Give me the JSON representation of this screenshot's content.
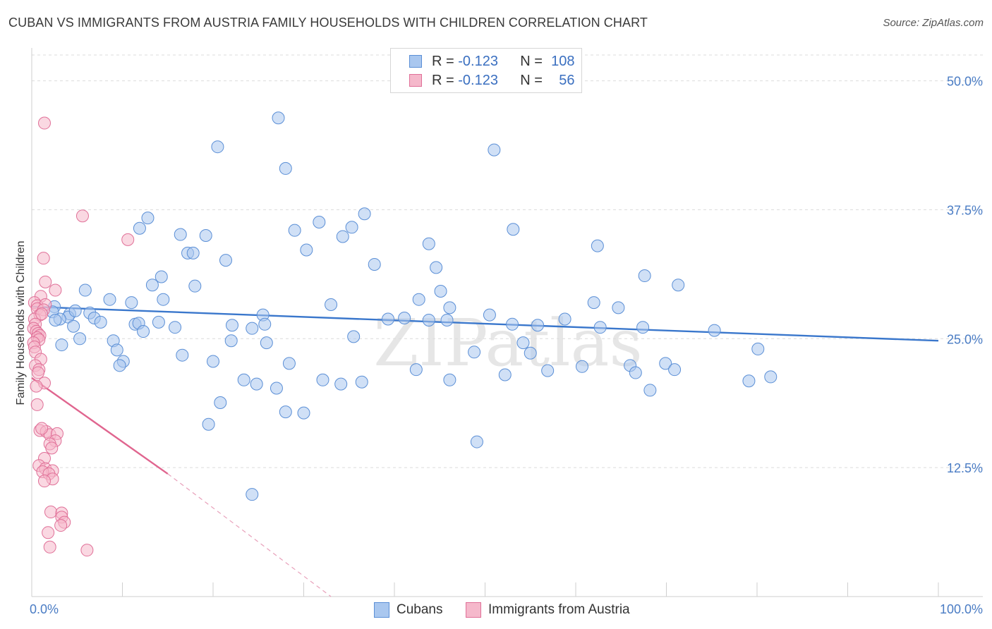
{
  "header": {
    "title": "CUBAN VS IMMIGRANTS FROM AUSTRIA FAMILY HOUSEHOLDS WITH CHILDREN CORRELATION CHART",
    "source": "Source: ZipAtlas.com"
  },
  "legend": {
    "rows": [
      {
        "r_label": "R =",
        "r_value": "-0.123",
        "n_label": "N =",
        "n_value": "108"
      },
      {
        "r_label": "R =",
        "r_value": "-0.123",
        "n_label": "N =",
        "n_value": "56"
      }
    ]
  },
  "colors": {
    "cubans_fill": "#a9c7ef",
    "cubans_stroke": "#5b8fd6",
    "cubans_line": "#3a77cc",
    "austria_fill": "#f5b8cb",
    "austria_stroke": "#e07098",
    "austria_line": "#e0658f",
    "grid": "#dcdcdc",
    "tick_text": "#4a7cc4"
  },
  "chart_data": {
    "type": "scatter",
    "title": "CUBAN VS IMMIGRANTS FROM AUSTRIA FAMILY HOUSEHOLDS WITH CHILDREN CORRELATION CHART",
    "xlabel": "",
    "ylabel": "Family Households with Children",
    "xlim": [
      0,
      100
    ],
    "ylim": [
      0,
      52.5
    ],
    "x_tick_labels": [
      "0.0%",
      "100.0%"
    ],
    "y_ticks": [
      12.5,
      25.0,
      37.5,
      50.0
    ],
    "y_tick_labels": [
      "12.5%",
      "25.0%",
      "37.5%",
      "50.0%"
    ],
    "grid": true,
    "legend_position": "bottom",
    "watermark": "ZIPatlas",
    "series": [
      {
        "name": "Cubans",
        "r": -0.123,
        "n": 108,
        "trend": {
          "x": [
            0,
            100
          ],
          "y": [
            28.1,
            24.8
          ]
        },
        "points": [
          [
            27.2,
            46.4
          ],
          [
            20.5,
            43.6
          ],
          [
            51.0,
            43.3
          ],
          [
            28.0,
            41.5
          ],
          [
            36.7,
            37.1
          ],
          [
            12.8,
            36.7
          ],
          [
            31.7,
            36.3
          ],
          [
            11.9,
            35.7
          ],
          [
            35.3,
            35.8
          ],
          [
            29.0,
            35.5
          ],
          [
            53.1,
            35.6
          ],
          [
            16.4,
            35.1
          ],
          [
            19.2,
            35.0
          ],
          [
            34.3,
            34.9
          ],
          [
            43.8,
            34.2
          ],
          [
            62.4,
            34.0
          ],
          [
            30.3,
            33.6
          ],
          [
            17.2,
            33.3
          ],
          [
            17.8,
            33.3
          ],
          [
            21.4,
            32.6
          ],
          [
            37.8,
            32.2
          ],
          [
            44.6,
            31.9
          ],
          [
            67.6,
            31.1
          ],
          [
            14.3,
            31.0
          ],
          [
            13.3,
            30.2
          ],
          [
            18.0,
            30.1
          ],
          [
            71.3,
            30.2
          ],
          [
            45.1,
            29.6
          ],
          [
            5.9,
            29.7
          ],
          [
            8.6,
            28.8
          ],
          [
            14.5,
            28.8
          ],
          [
            42.7,
            28.8
          ],
          [
            62.0,
            28.5
          ],
          [
            33.0,
            28.3
          ],
          [
            64.7,
            28.0
          ],
          [
            46.1,
            28.0
          ],
          [
            2.5,
            28.1
          ],
          [
            2.3,
            27.6
          ],
          [
            4.2,
            27.4
          ],
          [
            6.4,
            27.5
          ],
          [
            25.5,
            27.3
          ],
          [
            6.9,
            27.0
          ],
          [
            4.0,
            27.1
          ],
          [
            3.1,
            26.9
          ],
          [
            7.6,
            26.6
          ],
          [
            2.6,
            26.8
          ],
          [
            39.3,
            26.9
          ],
          [
            45.8,
            26.8
          ],
          [
            43.8,
            26.8
          ],
          [
            58.8,
            26.9
          ],
          [
            53.0,
            26.4
          ],
          [
            55.8,
            26.3
          ],
          [
            11.4,
            26.4
          ],
          [
            14.0,
            26.6
          ],
          [
            11.8,
            26.5
          ],
          [
            25.7,
            26.4
          ],
          [
            4.6,
            26.2
          ],
          [
            22.1,
            26.3
          ],
          [
            15.8,
            26.1
          ],
          [
            24.3,
            26.0
          ],
          [
            62.7,
            26.1
          ],
          [
            67.4,
            26.1
          ],
          [
            75.3,
            25.8
          ],
          [
            12.3,
            25.7
          ],
          [
            5.3,
            25.0
          ],
          [
            35.5,
            25.2
          ],
          [
            22.0,
            24.8
          ],
          [
            25.9,
            24.6
          ],
          [
            9.0,
            24.8
          ],
          [
            3.3,
            24.4
          ],
          [
            54.2,
            24.6
          ],
          [
            9.4,
            23.9
          ],
          [
            80.1,
            24.0
          ],
          [
            48.8,
            23.7
          ],
          [
            55.0,
            23.6
          ],
          [
            16.6,
            23.4
          ],
          [
            10.1,
            22.8
          ],
          [
            20.0,
            22.8
          ],
          [
            28.4,
            22.6
          ],
          [
            9.7,
            22.4
          ],
          [
            60.7,
            22.3
          ],
          [
            66.0,
            22.4
          ],
          [
            69.9,
            22.6
          ],
          [
            42.4,
            22.0
          ],
          [
            56.9,
            21.9
          ],
          [
            70.9,
            22.0
          ],
          [
            66.6,
            21.7
          ],
          [
            52.2,
            21.5
          ],
          [
            23.4,
            21.0
          ],
          [
            32.1,
            21.0
          ],
          [
            46.1,
            21.0
          ],
          [
            36.4,
            20.8
          ],
          [
            79.1,
            20.9
          ],
          [
            81.5,
            21.3
          ],
          [
            24.8,
            20.6
          ],
          [
            34.1,
            20.6
          ],
          [
            27.0,
            20.2
          ],
          [
            68.2,
            20.0
          ],
          [
            20.8,
            18.8
          ],
          [
            28.0,
            17.9
          ],
          [
            30.0,
            17.8
          ],
          [
            19.5,
            16.7
          ],
          [
            49.1,
            15.0
          ],
          [
            24.3,
            9.9
          ],
          [
            11.0,
            28.5
          ],
          [
            41.1,
            27.0
          ],
          [
            4.8,
            27.7
          ],
          [
            50.5,
            27.3
          ]
        ]
      },
      {
        "name": "Immigrants from Austria",
        "r": -0.123,
        "n": 56,
        "trend": {
          "x": [
            0,
            15
          ],
          "y": [
            21.2,
            11.9
          ]
        },
        "trend_extension": {
          "x": [
            15,
            33
          ],
          "y": [
            11.9,
            0
          ]
        },
        "points": [
          [
            1.4,
            45.9
          ],
          [
            5.6,
            36.9
          ],
          [
            10.6,
            34.6
          ],
          [
            1.3,
            32.8
          ],
          [
            1.5,
            30.5
          ],
          [
            2.6,
            29.7
          ],
          [
            1.0,
            29.1
          ],
          [
            0.3,
            28.5
          ],
          [
            0.6,
            28.2
          ],
          [
            1.5,
            28.3
          ],
          [
            0.6,
            27.9
          ],
          [
            1.3,
            27.8
          ],
          [
            0.9,
            27.3
          ],
          [
            0.3,
            26.9
          ],
          [
            0.4,
            26.4
          ],
          [
            0.2,
            26.0
          ],
          [
            0.5,
            25.7
          ],
          [
            0.7,
            25.5
          ],
          [
            0.9,
            25.3
          ],
          [
            0.6,
            25.1
          ],
          [
            0.8,
            24.9
          ],
          [
            0.2,
            24.6
          ],
          [
            0.3,
            24.2
          ],
          [
            0.4,
            23.7
          ],
          [
            1.0,
            23.0
          ],
          [
            0.4,
            22.4
          ],
          [
            0.8,
            22.0
          ],
          [
            0.7,
            21.7
          ],
          [
            1.4,
            20.7
          ],
          [
            0.5,
            20.4
          ],
          [
            0.6,
            18.6
          ],
          [
            0.9,
            16.1
          ],
          [
            1.6,
            16.0
          ],
          [
            2.0,
            15.7
          ],
          [
            2.8,
            15.8
          ],
          [
            1.1,
            16.3
          ],
          [
            2.6,
            15.1
          ],
          [
            2.0,
            14.8
          ],
          [
            2.2,
            14.4
          ],
          [
            1.4,
            13.4
          ],
          [
            0.8,
            12.7
          ],
          [
            1.5,
            12.4
          ],
          [
            2.3,
            12.2
          ],
          [
            1.2,
            12.1
          ],
          [
            1.9,
            11.9
          ],
          [
            2.3,
            11.4
          ],
          [
            1.4,
            11.2
          ],
          [
            2.1,
            8.2
          ],
          [
            3.3,
            8.1
          ],
          [
            3.3,
            7.7
          ],
          [
            3.6,
            7.2
          ],
          [
            3.2,
            6.9
          ],
          [
            1.8,
            6.2
          ],
          [
            2.0,
            4.8
          ],
          [
            6.1,
            4.5
          ],
          [
            1.1,
            27.4
          ]
        ]
      }
    ]
  }
}
